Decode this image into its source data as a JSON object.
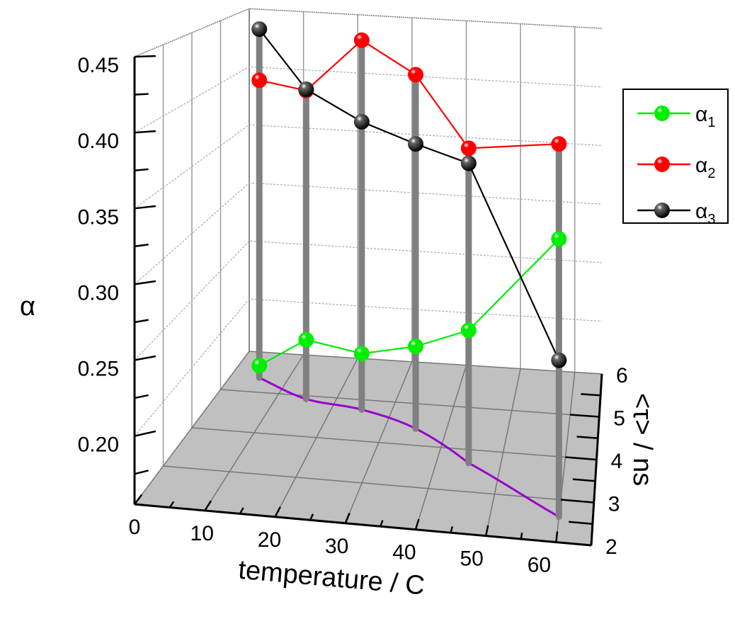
{
  "chart_data": {
    "type": "scatter3d",
    "xlabel": "temperature / C",
    "ylabel": "<τ> / ns",
    "zlabel": "α",
    "xlim": [
      0,
      65
    ],
    "ylim": [
      2,
      6
    ],
    "zlim": [
      0.155,
      0.45
    ],
    "x_ticks": [
      "0",
      "10",
      "20",
      "30",
      "40",
      "50",
      "60"
    ],
    "y_ticks": [
      "2",
      "3",
      "4",
      "5",
      "6"
    ],
    "z_ticks": [
      "0.20",
      "0.25",
      "0.30",
      "0.35",
      "0.40",
      "0.45"
    ],
    "x": [
      5,
      15,
      25,
      35,
      45,
      60
    ],
    "tau": [
      5.36,
      4.92,
      4.76,
      4.4,
      3.68,
      2.6
    ],
    "series": [
      {
        "name": "α1",
        "symbol": "α",
        "sub": "1",
        "color": "#00ee00",
        "values": [
          0.165,
          0.202,
          0.199,
          0.218,
          0.252,
          0.345
        ]
      },
      {
        "name": "α2",
        "symbol": "α",
        "sub": "2",
        "color": "#ff0000",
        "values": [
          0.399,
          0.4,
          0.445,
          0.426,
          0.385,
          0.41
        ]
      },
      {
        "name": "α3",
        "symbol": "α",
        "sub": "3",
        "color": "#000000",
        "values": [
          0.441,
          0.401,
          0.381,
          0.373,
          0.374,
          0.262
        ]
      }
    ],
    "floor_curve_color": "#9900cc",
    "drop_line_color": "#808080",
    "floor_color": "#c0c0c0",
    "grid": true,
    "legend_position": "right"
  }
}
